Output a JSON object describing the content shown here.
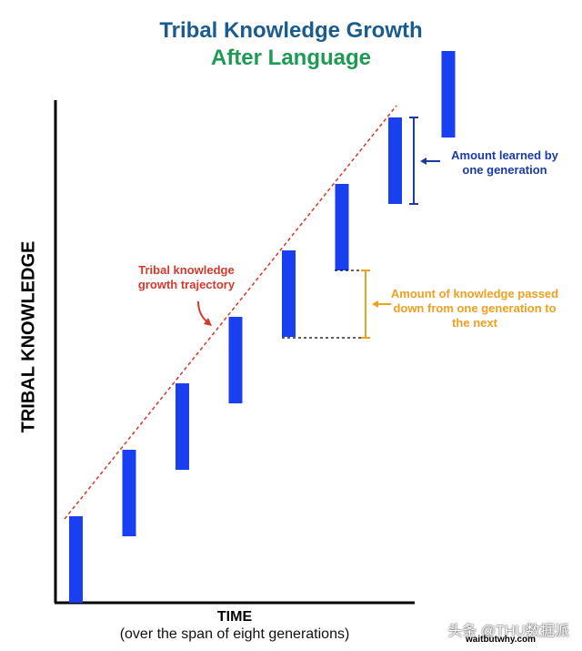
{
  "title": {
    "line1": "Tribal Knowledge Growth",
    "line2": "After Language"
  },
  "axes": {
    "ylabel": "TRIBAL KNOWLEDGE",
    "xlabel": "TIME",
    "xsub": "(over the span of eight generations)"
  },
  "annotations": {
    "learned": "Amount learned by one generation",
    "passed": "Amount of knowledge passed down from one generation to the next",
    "trajectory": "Tribal knowledge growth trajectory"
  },
  "generations": {
    "count": 8,
    "bar_color": "#1a3ff0"
  },
  "colors": {
    "title1": "#1a5c8e",
    "title2": "#1e9a55",
    "learned": "#1a3aa6",
    "passed": "#f0a020",
    "trajectory": "#d33a2c"
  },
  "watermark": "头条 @THU数据派",
  "site": "waitbutwhy.com"
}
